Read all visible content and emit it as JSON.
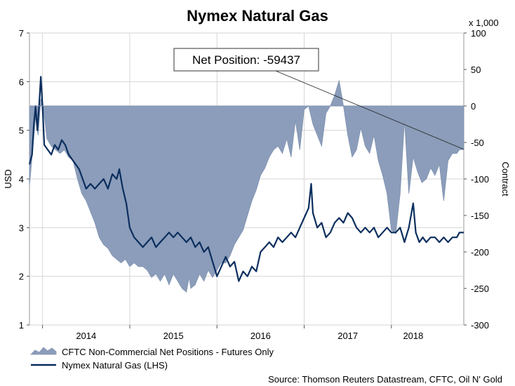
{
  "chart_data": {
    "type": "line",
    "title": "Nymex Natural Gas",
    "left_axis": {
      "label": "USD",
      "ylim": [
        1,
        7
      ],
      "ticks": [
        1,
        2,
        3,
        4,
        5,
        6,
        7
      ]
    },
    "right_axis": {
      "label": "Contract",
      "multiplier_label": "x 1,000",
      "ylim": [
        -300,
        100
      ],
      "ticks": [
        -300,
        -250,
        -200,
        -150,
        -100,
        -50,
        0,
        50,
        100
      ]
    },
    "x_axis": {
      "range": [
        2013.35,
        2018.33
      ],
      "tick_labels": [
        "2014",
        "2015",
        "2016",
        "2017",
        "2018"
      ],
      "tick_label_positions": [
        2014.0,
        2015.0,
        2016.0,
        2017.0,
        2017.75
      ],
      "year_boundaries": [
        2013.5,
        2014.5,
        2015.5,
        2016.5,
        2017.5
      ]
    },
    "grid": true,
    "annotation": {
      "text": "Net Position: -59437",
      "points_to": [
        2018.33,
        -59.437
      ]
    },
    "source": "Source: Thomson Reuters Datastream, CFTC, Oil N' Gold",
    "legend": [
      {
        "label": "CFTC Non-Commercial Net Positions - Futures Only",
        "kind": "area",
        "color": "#8b9dba"
      },
      {
        "label": "Nymex Natural Gas (LHS)",
        "kind": "line",
        "color": "#0b2e5e"
      }
    ],
    "series": [
      {
        "name": "CFTC Non-Commercial Net Positions - Futures Only",
        "axis": "right",
        "color": "#8b9dba",
        "edge_color": "#7f92b0",
        "unit": "thousand contracts",
        "points": [
          [
            2013.35,
            -110
          ],
          [
            2013.38,
            -70
          ],
          [
            2013.42,
            -15
          ],
          [
            2013.45,
            -40
          ],
          [
            2013.48,
            10
          ],
          [
            2013.51,
            -5
          ],
          [
            2013.55,
            -45
          ],
          [
            2013.6,
            -55
          ],
          [
            2013.65,
            -60
          ],
          [
            2013.7,
            -65
          ],
          [
            2013.75,
            -60
          ],
          [
            2013.8,
            -70
          ],
          [
            2013.85,
            -75
          ],
          [
            2013.9,
            -100
          ],
          [
            2013.95,
            -120
          ],
          [
            2014.0,
            -130
          ],
          [
            2014.05,
            -145
          ],
          [
            2014.1,
            -160
          ],
          [
            2014.15,
            -180
          ],
          [
            2014.2,
            -190
          ],
          [
            2014.25,
            -195
          ],
          [
            2014.3,
            -205
          ],
          [
            2014.35,
            -210
          ],
          [
            2014.4,
            -215
          ],
          [
            2014.45,
            -210
          ],
          [
            2014.5,
            -220
          ],
          [
            2014.55,
            -215
          ],
          [
            2014.6,
            -220
          ],
          [
            2014.65,
            -220
          ],
          [
            2014.7,
            -225
          ],
          [
            2014.75,
            -235
          ],
          [
            2014.8,
            -230
          ],
          [
            2014.85,
            -240
          ],
          [
            2014.9,
            -230
          ],
          [
            2014.95,
            -245
          ],
          [
            2015.0,
            -230
          ],
          [
            2015.05,
            -240
          ],
          [
            2015.1,
            -250
          ],
          [
            2015.15,
            -255
          ],
          [
            2015.18,
            -235
          ],
          [
            2015.2,
            -250
          ],
          [
            2015.25,
            -245
          ],
          [
            2015.3,
            -230
          ],
          [
            2015.35,
            -240
          ],
          [
            2015.4,
            -225
          ],
          [
            2015.45,
            -235
          ],
          [
            2015.5,
            -225
          ],
          [
            2015.55,
            -215
          ],
          [
            2015.6,
            -215
          ],
          [
            2015.65,
            -205
          ],
          [
            2015.7,
            -190
          ],
          [
            2015.75,
            -180
          ],
          [
            2015.8,
            -170
          ],
          [
            2015.85,
            -150
          ],
          [
            2015.9,
            -130
          ],
          [
            2015.95,
            -115
          ],
          [
            2016.0,
            -95
          ],
          [
            2016.05,
            -85
          ],
          [
            2016.1,
            -70
          ],
          [
            2016.15,
            -60
          ],
          [
            2016.2,
            -55
          ],
          [
            2016.25,
            -65
          ],
          [
            2016.3,
            -45
          ],
          [
            2016.35,
            -70
          ],
          [
            2016.4,
            -20
          ],
          [
            2016.45,
            -60
          ],
          [
            2016.5,
            -5
          ],
          [
            2016.55,
            0
          ],
          [
            2016.6,
            -25
          ],
          [
            2016.65,
            -40
          ],
          [
            2016.7,
            -55
          ],
          [
            2016.75,
            -10
          ],
          [
            2016.8,
            0
          ],
          [
            2016.85,
            15
          ],
          [
            2016.9,
            35
          ],
          [
            2016.95,
            0
          ],
          [
            2017.0,
            -40
          ],
          [
            2017.05,
            -70
          ],
          [
            2017.1,
            -60
          ],
          [
            2017.15,
            -30
          ],
          [
            2017.2,
            -55
          ],
          [
            2017.25,
            -65
          ],
          [
            2017.3,
            -40
          ],
          [
            2017.35,
            -75
          ],
          [
            2017.4,
            -95
          ],
          [
            2017.45,
            -120
          ],
          [
            2017.5,
            -170
          ],
          [
            2017.55,
            -175
          ],
          [
            2017.6,
            -120
          ],
          [
            2017.65,
            -20
          ],
          [
            2017.7,
            -120
          ],
          [
            2017.75,
            -70
          ],
          [
            2017.8,
            -90
          ],
          [
            2017.85,
            -105
          ],
          [
            2017.9,
            -100
          ],
          [
            2017.95,
            -85
          ],
          [
            2018.0,
            -95
          ],
          [
            2018.05,
            -80
          ],
          [
            2018.1,
            -130
          ],
          [
            2018.15,
            -75
          ],
          [
            2018.2,
            -65
          ],
          [
            2018.25,
            -65
          ],
          [
            2018.28,
            -60
          ],
          [
            2018.3,
            -60
          ],
          [
            2018.33,
            -59.437
          ]
        ]
      },
      {
        "name": "Nymex Natural Gas (LHS)",
        "axis": "left",
        "color": "#0b2e5e",
        "unit": "USD",
        "points": [
          [
            2013.35,
            4.3
          ],
          [
            2013.38,
            4.5
          ],
          [
            2013.4,
            5.1
          ],
          [
            2013.42,
            5.5
          ],
          [
            2013.44,
            5.0
          ],
          [
            2013.46,
            5.5
          ],
          [
            2013.48,
            6.1
          ],
          [
            2013.5,
            5.5
          ],
          [
            2013.52,
            4.7
          ],
          [
            2013.56,
            4.6
          ],
          [
            2013.6,
            4.5
          ],
          [
            2013.64,
            4.7
          ],
          [
            2013.68,
            4.6
          ],
          [
            2013.72,
            4.8
          ],
          [
            2013.76,
            4.7
          ],
          [
            2013.8,
            4.5
          ],
          [
            2013.84,
            4.4
          ],
          [
            2013.88,
            4.3
          ],
          [
            2013.92,
            4.2
          ],
          [
            2013.96,
            4.0
          ],
          [
            2014.0,
            3.8
          ],
          [
            2014.05,
            3.9
          ],
          [
            2014.1,
            3.8
          ],
          [
            2014.15,
            3.9
          ],
          [
            2014.2,
            4.0
          ],
          [
            2014.25,
            3.8
          ],
          [
            2014.3,
            4.1
          ],
          [
            2014.35,
            4.0
          ],
          [
            2014.38,
            4.2
          ],
          [
            2014.42,
            3.8
          ],
          [
            2014.46,
            3.5
          ],
          [
            2014.5,
            3.0
          ],
          [
            2014.55,
            2.8
          ],
          [
            2014.6,
            2.7
          ],
          [
            2014.65,
            2.6
          ],
          [
            2014.7,
            2.7
          ],
          [
            2014.75,
            2.8
          ],
          [
            2014.8,
            2.6
          ],
          [
            2014.85,
            2.7
          ],
          [
            2014.9,
            2.8
          ],
          [
            2014.95,
            2.9
          ],
          [
            2015.0,
            2.8
          ],
          [
            2015.05,
            2.9
          ],
          [
            2015.1,
            2.8
          ],
          [
            2015.15,
            2.7
          ],
          [
            2015.2,
            2.8
          ],
          [
            2015.25,
            2.6
          ],
          [
            2015.3,
            2.7
          ],
          [
            2015.35,
            2.5
          ],
          [
            2015.4,
            2.6
          ],
          [
            2015.45,
            2.3
          ],
          [
            2015.5,
            2.0
          ],
          [
            2015.55,
            2.2
          ],
          [
            2015.6,
            2.4
          ],
          [
            2015.65,
            2.2
          ],
          [
            2015.7,
            2.3
          ],
          [
            2015.75,
            1.9
          ],
          [
            2015.8,
            2.1
          ],
          [
            2015.85,
            2.0
          ],
          [
            2015.9,
            2.2
          ],
          [
            2015.95,
            2.1
          ],
          [
            2016.0,
            2.5
          ],
          [
            2016.05,
            2.6
          ],
          [
            2016.1,
            2.7
          ],
          [
            2016.15,
            2.6
          ],
          [
            2016.2,
            2.8
          ],
          [
            2016.25,
            2.7
          ],
          [
            2016.3,
            2.8
          ],
          [
            2016.35,
            2.9
          ],
          [
            2016.4,
            2.8
          ],
          [
            2016.45,
            3.0
          ],
          [
            2016.5,
            3.2
          ],
          [
            2016.55,
            3.4
          ],
          [
            2016.58,
            3.9
          ],
          [
            2016.6,
            3.3
          ],
          [
            2016.65,
            3.0
          ],
          [
            2016.7,
            3.1
          ],
          [
            2016.75,
            2.8
          ],
          [
            2016.8,
            2.9
          ],
          [
            2016.85,
            3.1
          ],
          [
            2016.9,
            3.2
          ],
          [
            2016.95,
            3.1
          ],
          [
            2017.0,
            3.3
          ],
          [
            2017.05,
            3.2
          ],
          [
            2017.1,
            3.0
          ],
          [
            2017.15,
            2.9
          ],
          [
            2017.2,
            3.0
          ],
          [
            2017.25,
            2.9
          ],
          [
            2017.3,
            3.0
          ],
          [
            2017.35,
            2.8
          ],
          [
            2017.4,
            2.9
          ],
          [
            2017.45,
            3.0
          ],
          [
            2017.5,
            2.9
          ],
          [
            2017.55,
            2.9
          ],
          [
            2017.6,
            3.0
          ],
          [
            2017.65,
            2.7
          ],
          [
            2017.7,
            3.0
          ],
          [
            2017.75,
            3.5
          ],
          [
            2017.78,
            2.9
          ],
          [
            2017.82,
            2.7
          ],
          [
            2017.86,
            2.8
          ],
          [
            2017.9,
            2.7
          ],
          [
            2017.95,
            2.8
          ],
          [
            2018.0,
            2.8
          ],
          [
            2018.05,
            2.7
          ],
          [
            2018.1,
            2.8
          ],
          [
            2018.15,
            2.7
          ],
          [
            2018.2,
            2.8
          ],
          [
            2018.25,
            2.8
          ],
          [
            2018.28,
            2.9
          ],
          [
            2018.33,
            2.9
          ]
        ]
      }
    ]
  }
}
